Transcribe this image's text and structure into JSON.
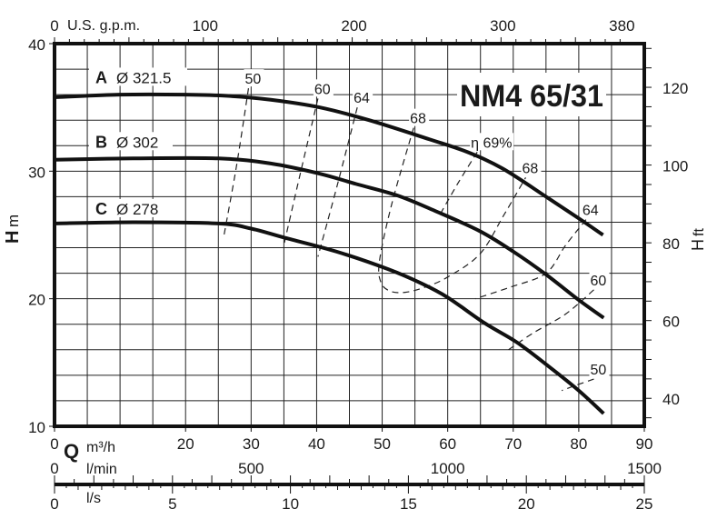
{
  "chart_data": {
    "type": "line",
    "title": "NM4 65/31",
    "x_axes": {
      "primary": {
        "unit": "m³/h",
        "symbol": "Q",
        "range": [
          0,
          90
        ],
        "ticks": [
          0,
          20,
          30,
          40,
          50,
          60,
          70,
          80,
          90
        ]
      },
      "top": {
        "unit": "U.S. g.p.m.",
        "ticks": [
          0,
          100,
          200,
          300,
          380
        ]
      },
      "lmin": {
        "unit": "l/min",
        "ticks": [
          0,
          500,
          1000,
          1500
        ]
      },
      "ls": {
        "unit": "l/s",
        "ticks": [
          0,
          5,
          10,
          15,
          20,
          25
        ]
      }
    },
    "y_axes": {
      "left": {
        "label": "H",
        "unit": "m",
        "range": [
          10,
          40
        ],
        "ticks": [
          10,
          20,
          30,
          40
        ]
      },
      "right": {
        "label": "H",
        "unit": "ft",
        "ticks": [
          40,
          60,
          80,
          100,
          120
        ]
      }
    },
    "grid": true,
    "series": [
      {
        "name": "A",
        "diameter": "Ø 321.5",
        "points": [
          [
            0,
            35.8
          ],
          [
            10,
            36.0
          ],
          [
            20,
            36.0
          ],
          [
            26.5,
            35.9
          ],
          [
            33,
            35.6
          ],
          [
            40.5,
            35.0
          ],
          [
            48,
            34.0
          ],
          [
            57.2,
            32.5
          ],
          [
            63,
            31.5
          ],
          [
            68.4,
            30.2
          ],
          [
            75.3,
            27.9
          ],
          [
            80,
            26.3
          ],
          [
            83.7,
            25.0
          ]
        ]
      },
      {
        "name": "B",
        "diameter": "Ø 302",
        "points": [
          [
            0,
            30.9
          ],
          [
            12,
            31.0
          ],
          [
            25,
            31.0
          ],
          [
            33,
            30.6
          ],
          [
            40.5,
            29.8
          ],
          [
            46,
            29.0
          ],
          [
            52.3,
            28.1
          ],
          [
            58,
            26.9
          ],
          [
            64.9,
            25.3
          ],
          [
            70,
            23.7
          ],
          [
            75,
            21.9
          ],
          [
            80,
            19.9
          ],
          [
            83.8,
            18.5
          ]
        ]
      },
      {
        "name": "C",
        "diameter": "Ø 278",
        "points": [
          [
            0,
            25.9
          ],
          [
            12,
            26.0
          ],
          [
            25,
            25.9
          ],
          [
            30,
            25.5
          ],
          [
            35,
            24.8
          ],
          [
            43,
            23.7
          ],
          [
            51,
            22.3
          ],
          [
            56,
            21.2
          ],
          [
            60,
            20.1
          ],
          [
            65.6,
            18.1
          ],
          [
            70.5,
            16.6
          ],
          [
            75.4,
            14.7
          ],
          [
            80,
            12.8
          ],
          [
            83.8,
            11.0
          ]
        ]
      }
    ],
    "efficiency_lines": [
      {
        "label": "50",
        "points": [
          [
            29.6,
            36.5
          ],
          [
            27.8,
            30.5
          ],
          [
            25.8,
            24.8
          ]
        ]
      },
      {
        "label": "60",
        "points": [
          [
            40.2,
            35.7
          ],
          [
            37.5,
            29.8
          ],
          [
            34.9,
            24.0
          ]
        ]
      },
      {
        "label": "64",
        "points": [
          [
            46.2,
            35.0
          ],
          [
            43.2,
            29.0
          ],
          [
            40.2,
            23.3
          ]
        ]
      },
      {
        "label": "68",
        "points": [
          [
            54.8,
            33.4
          ],
          [
            51.5,
            27.5
          ],
          [
            49.6,
            23.0
          ],
          [
            49.8,
            21.3
          ],
          [
            51.2,
            20.6
          ],
          [
            53.5,
            20.5
          ],
          [
            56.5,
            20.9
          ],
          [
            60,
            21.7
          ],
          [
            64.9,
            23.5
          ],
          [
            68.5,
            26.5
          ],
          [
            71.9,
            29.5
          ]
        ]
      },
      {
        "label": "η 69%",
        "points": [
          [
            64.5,
            31.5
          ],
          [
            61.5,
            29.0
          ],
          [
            58.6,
            26.4
          ]
        ]
      },
      {
        "label": "68",
        "points": [
          [
            71.9,
            29.5
          ]
        ]
      },
      {
        "label": "64",
        "points": [
          [
            81.1,
            26.2
          ],
          [
            78,
            24.2
          ],
          [
            75,
            22.0
          ],
          [
            69.5,
            20.9
          ],
          [
            64.2,
            20.0
          ]
        ]
      },
      {
        "label": "60",
        "points": [
          [
            82.3,
            20.7
          ],
          [
            78,
            18.8
          ],
          [
            73,
            17.3
          ],
          [
            69,
            15.9
          ]
        ]
      },
      {
        "label": "50",
        "points": [
          [
            82.3,
            13.7
          ],
          [
            79.5,
            13.2
          ],
          [
            77.4,
            12.8
          ]
        ]
      }
    ]
  }
}
